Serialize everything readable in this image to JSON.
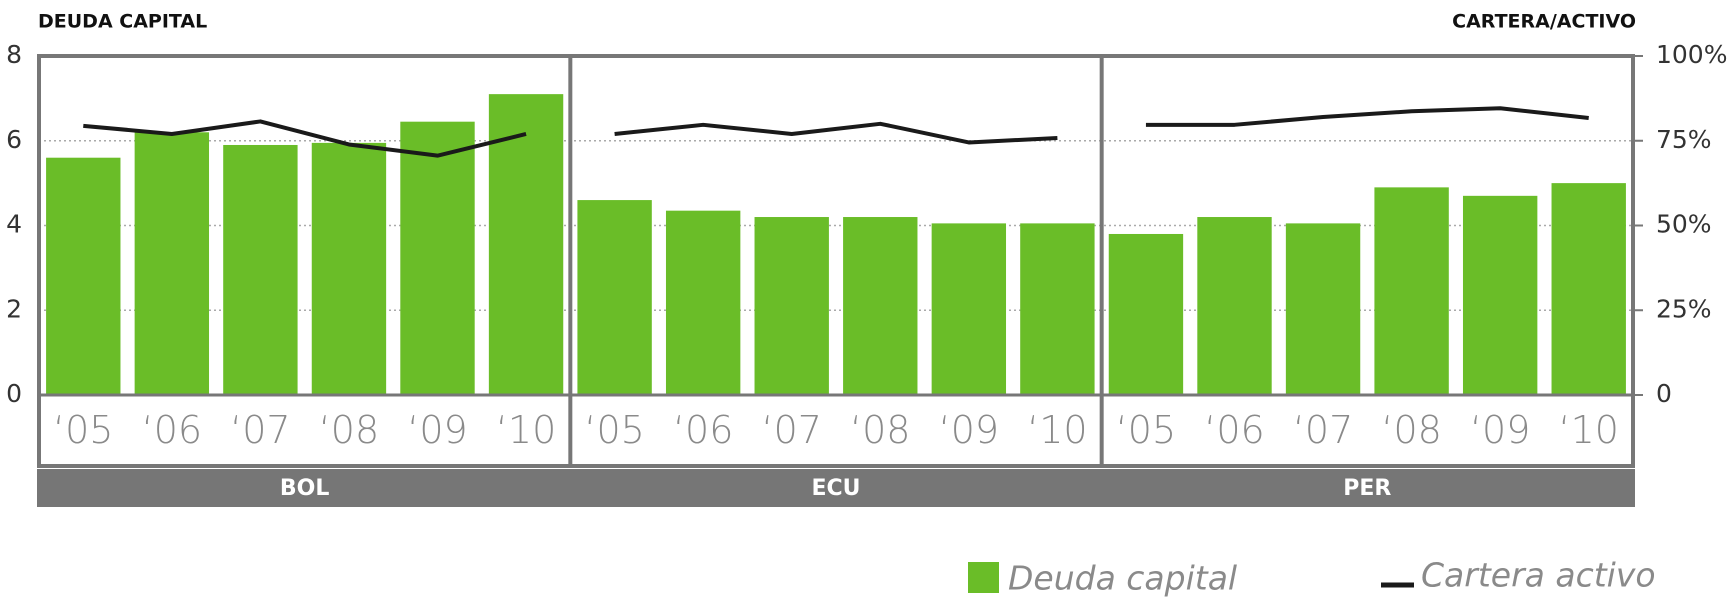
{
  "chart_data": {
    "type": "bar",
    "y_label": "DEUDA CAPITAL",
    "y2_label": "CARTERA/ACTIVO",
    "ylim": [
      0,
      8
    ],
    "yticks": [
      0,
      2,
      4,
      6,
      8
    ],
    "y2lim": [
      0,
      100
    ],
    "y2ticks": [
      0,
      {
        "value": 25,
        "label": "25%"
      },
      {
        "value": 50,
        "label": "50%"
      },
      {
        "value": 75,
        "label": "75%"
      },
      {
        "value": 100,
        "label": "100%"
      }
    ],
    "grid": true,
    "legend": [
      {
        "name": "Deuda capital",
        "color": "#6abd28",
        "type": "bar"
      },
      {
        "name": "Cartera activo",
        "color": "#1a1a1a",
        "type": "line"
      }
    ],
    "panels": [
      {
        "title": "BOL",
        "categories": [
          "‘05",
          "‘06",
          "‘07",
          "‘08",
          "‘09",
          "‘10"
        ],
        "series": [
          {
            "values": [
              5.6,
              6.2,
              5.9,
              5.95,
              6.45,
              7.1
            ]
          },
          {
            "axis": "y2",
            "values": [
              79.4,
              77,
              80.7,
              73.9,
              70.6,
              77
            ]
          }
        ]
      },
      {
        "title": "ECU",
        "categories": [
          "‘05",
          "‘06",
          "‘07",
          "‘08",
          "‘09",
          "‘10"
        ],
        "series": [
          {
            "values": [
              4.6,
              4.35,
              4.2,
              4.2,
              4.05,
              4.05
            ]
          },
          {
            "axis": "y2",
            "values": [
              77,
              79.7,
              77,
              80,
              74.5,
              75.8
            ]
          }
        ]
      },
      {
        "title": "PER",
        "categories": [
          "‘05",
          "‘06",
          "‘07",
          "‘08",
          "‘09",
          "‘10"
        ],
        "series": [
          {
            "values": [
              3.8,
              4.2,
              4.05,
              4.9,
              4.7,
              5.0
            ]
          },
          {
            "axis": "y2",
            "values": [
              79.7,
              79.7,
              82,
              83.7,
              84.6,
              81.7
            ]
          }
        ]
      }
    ]
  }
}
